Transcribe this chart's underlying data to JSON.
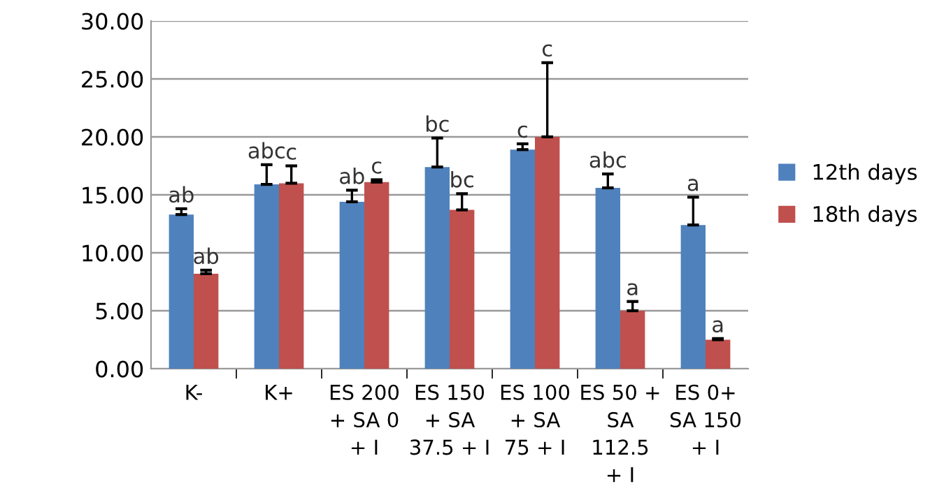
{
  "chart_data": {
    "type": "bar",
    "categories": [
      "K-",
      "K+",
      "ES 200\n+ SA 0\n+ I",
      "ES 150\n+ SA\n37.5 + I",
      "ES 100\n+ SA\n75 + I",
      "ES 50 +\nSA\n112.5\n+ I",
      "ES 0+\nSA 150\n+ I"
    ],
    "series": [
      {
        "name": "12th days",
        "color": "#4f81bd",
        "values": [
          13.3,
          15.9,
          14.4,
          17.4,
          18.9,
          15.6,
          12.4
        ],
        "errors": [
          [
            13.3,
            13.8
          ],
          [
            15.9,
            17.6
          ],
          [
            14.4,
            15.4
          ],
          [
            17.4,
            19.9
          ],
          [
            18.9,
            19.4
          ],
          [
            15.6,
            16.8
          ],
          [
            12.4,
            14.8
          ]
        ]
      },
      {
        "name": "18th days",
        "color": "#c0504d",
        "values": [
          8.2,
          16.0,
          16.1,
          13.7,
          20.0,
          5.0,
          2.5
        ],
        "errors": [
          [
            8.2,
            8.5
          ],
          [
            16.0,
            17.5
          ],
          [
            16.1,
            16.3
          ],
          [
            13.7,
            15.1
          ],
          [
            20.0,
            26.4
          ],
          [
            5.0,
            5.8
          ],
          [
            2.5,
            2.6
          ]
        ]
      }
    ],
    "annotations": [
      "ab",
      "abc",
      "ab",
      "bc",
      "c",
      "abc",
      "a",
      "ab",
      "c",
      "c",
      "bc",
      "c",
      "a",
      "a"
    ],
    "ylim": [
      0,
      30
    ],
    "yticks": [
      {
        "value": 0,
        "label": "0.00"
      },
      {
        "value": 5,
        "label": "5.00"
      },
      {
        "value": 10,
        "label": "10.00"
      },
      {
        "value": 15,
        "label": "15.00"
      },
      {
        "value": 20,
        "label": "20.00"
      },
      {
        "value": 25,
        "label": "25.00"
      },
      {
        "value": 30,
        "label": "30.00"
      }
    ],
    "grid": "y",
    "legend": "right"
  }
}
